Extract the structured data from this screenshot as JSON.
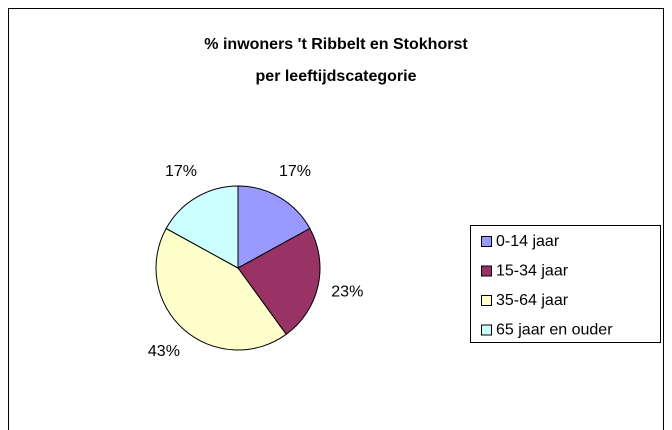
{
  "chart_data": {
    "type": "pie",
    "title": [
      "% inwoners 't Ribbelt en Stokhorst",
      "per leeftijdscategorie"
    ],
    "categories": [
      "0-14 jaar",
      "15-34 jaar",
      "35-64 jaar",
      "65 jaar en ouder"
    ],
    "values": [
      17,
      23,
      43,
      17
    ],
    "value_labels": [
      "17%",
      "23%",
      "43%",
      "17%"
    ],
    "colors": [
      "#9999ff",
      "#993366",
      "#ffffcc",
      "#ccffff"
    ],
    "legend": "right"
  }
}
